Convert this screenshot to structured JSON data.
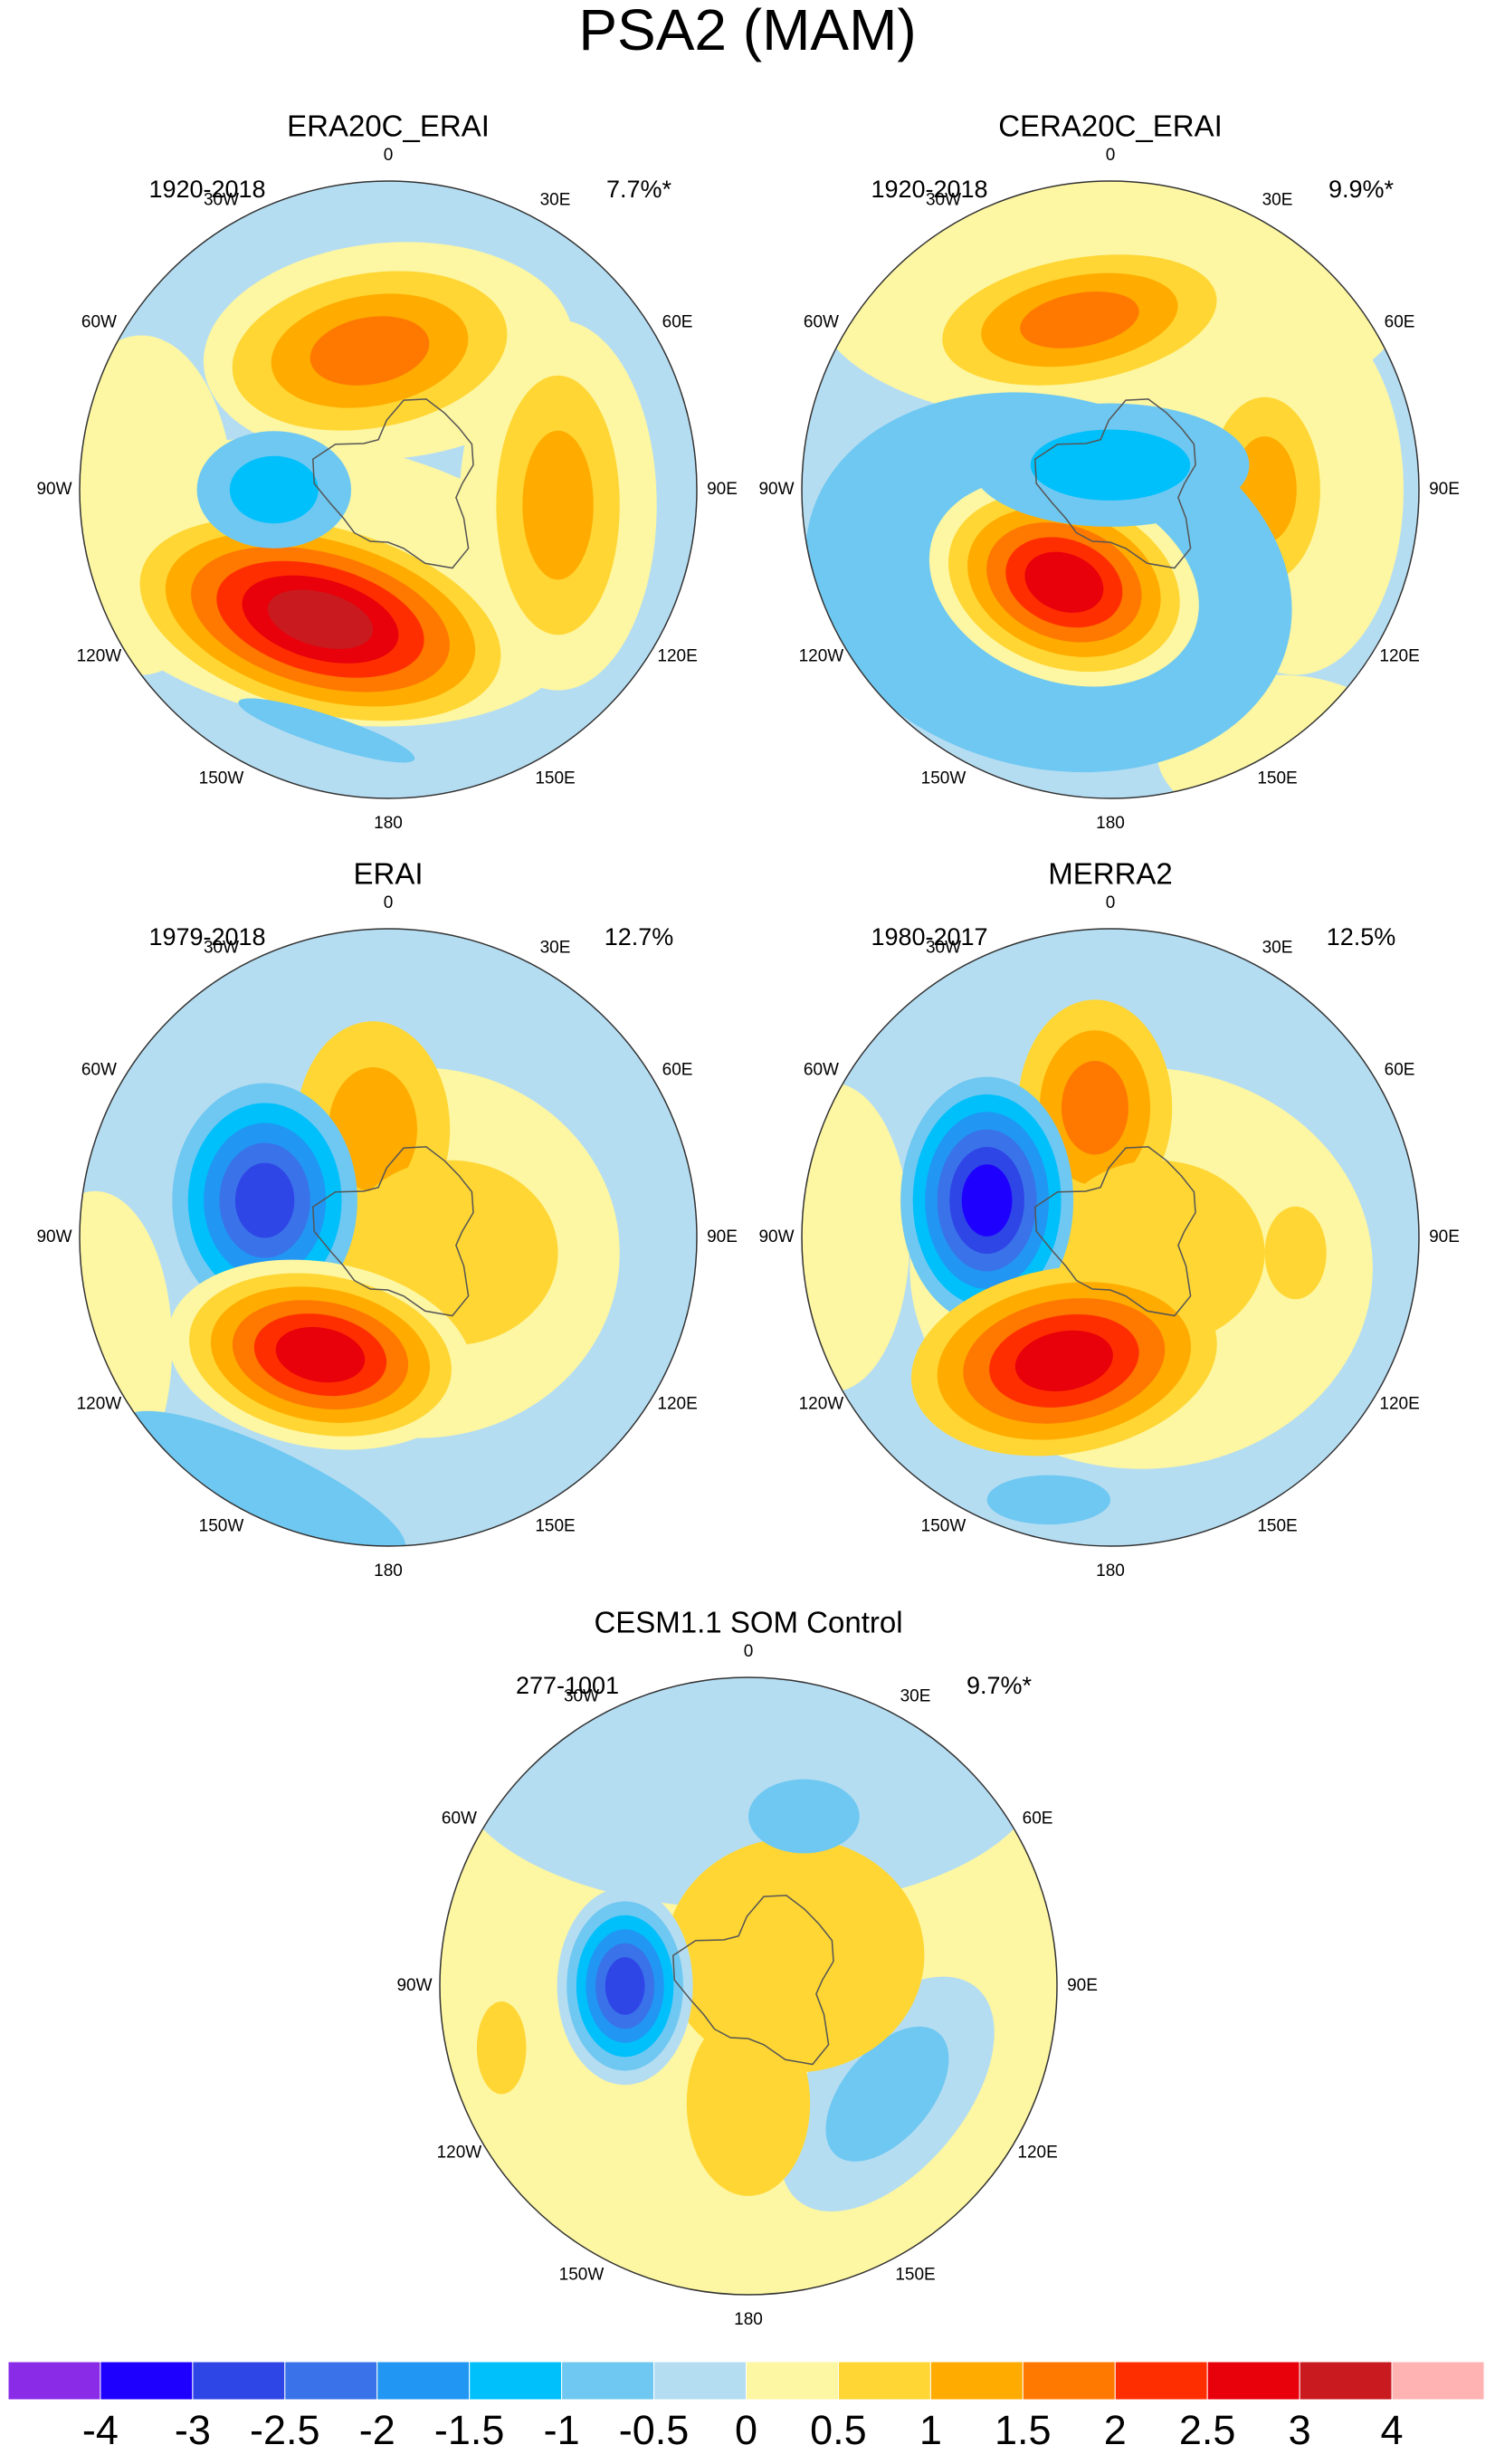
{
  "title": "PSA2 (MAM)",
  "panels": [
    {
      "title": "ERA20C_ERAI",
      "period": "1920-2018",
      "variance": "7.7%*"
    },
    {
      "title": "CERA20C_ERAI",
      "period": "1920-2018",
      "variance": "9.9%*"
    },
    {
      "title": "ERAI",
      "period": "1979-2018",
      "variance": "12.7%"
    },
    {
      "title": "MERRA2",
      "period": "1980-2017",
      "variance": "12.5%"
    },
    {
      "title": "CESM1.1 SOM Control",
      "period": "277-1001",
      "variance": "9.7%*"
    }
  ],
  "longitude_labels": [
    "0",
    "30E",
    "60E",
    "90E",
    "120E",
    "150E",
    "180",
    "150W",
    "120W",
    "90W",
    "60W",
    "30W"
  ],
  "colorbar": {
    "colors": [
      "#8a2be8",
      "#1e00ff",
      "#2f46e6",
      "#3a72ea",
      "#2196f3",
      "#00c0fb",
      "#6fc8f1",
      "#b5ddf2",
      "#fdf6a2",
      "#ffd633",
      "#ffab00",
      "#ff7800",
      "#ff2e00",
      "#e8000b",
      "#c91b1f",
      "#ffb3b3"
    ],
    "ticks": [
      -4,
      -3,
      -2.5,
      -2,
      -1.5,
      -1,
      -0.5,
      0,
      0.5,
      1,
      1.5,
      2,
      2.5,
      3,
      4
    ]
  }
}
